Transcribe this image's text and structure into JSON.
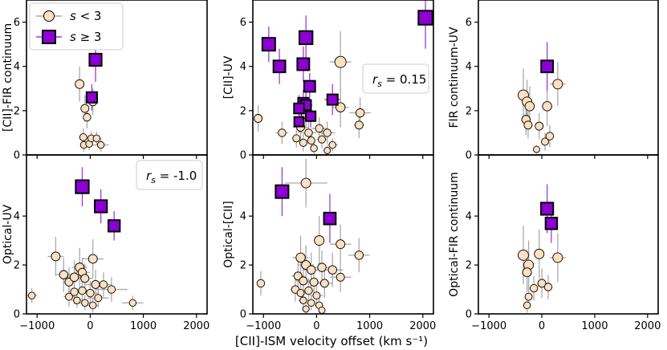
{
  "chart_data": {
    "type": "scatter",
    "shared_xlabel": "[CII]-ISM velocity offset (km s⁻¹)",
    "xlim": [
      -1200,
      2200
    ],
    "xticks": [
      -1000,
      0,
      1000,
      2000
    ],
    "xtick_labels": [
      "−1000",
      "0",
      "1000",
      "2000"
    ],
    "legend": {
      "position": "top-left of top-left panel",
      "entries": [
        {
          "label": "s < 3",
          "marker": "circle",
          "color": "#fde0c0"
        },
        {
          "label": "s ≥ 3",
          "marker": "square",
          "color": "#8c00d4"
        }
      ]
    },
    "colors": {
      "low_fill": "#fde0c0",
      "high_fill": "#8c00d4",
      "low_err": "#aaaaaa",
      "high_err": "#9a3fd0",
      "edge": "#000000"
    },
    "panels": [
      {
        "id": "p00",
        "ylabel": "[CII]-FIR continuum",
        "ylim": [
          0,
          7
        ],
        "yticks": [
          0,
          2,
          4,
          6
        ],
        "annotation": "",
        "low": [
          {
            "x": -200,
            "y": 3.2,
            "xerr": 80,
            "yerr": 0.8
          },
          {
            "x": -100,
            "y": 2.1,
            "xerr": 80,
            "yerr": 0.6
          },
          {
            "x": -60,
            "y": 1.7,
            "xerr": 60,
            "yerr": 0.5
          },
          {
            "x": 50,
            "y": 2.4,
            "xerr": 100,
            "yerr": 0.6
          },
          {
            "x": -130,
            "y": 0.8,
            "xerr": 80,
            "yerr": 0.4
          },
          {
            "x": -120,
            "y": 0.45,
            "xerr": 60,
            "yerr": 0.3
          },
          {
            "x": -20,
            "y": 0.5,
            "xerr": 60,
            "yerr": 0.3
          },
          {
            "x": 20,
            "y": 0.75,
            "xerr": 60,
            "yerr": 0.3
          },
          {
            "x": 120,
            "y": 0.75,
            "xerr": 80,
            "yerr": 0.3
          },
          {
            "x": 200,
            "y": 0.45,
            "xerr": 150,
            "yerr": 0.3
          }
        ],
        "high": [
          {
            "x": 30,
            "y": 2.6,
            "xerr": 90,
            "yerr": 0.6
          },
          {
            "x": 100,
            "y": 4.3,
            "xerr": 60,
            "yerr": 1.0
          }
        ]
      },
      {
        "id": "p01",
        "ylabel": "[CII]-UV",
        "ylim": [
          0,
          7
        ],
        "yticks": [
          0,
          2,
          4,
          6
        ],
        "annotation": "r_s = 0.15",
        "low": [
          {
            "x": 450,
            "y": 4.2,
            "xerr": 200,
            "yerr": 1.4
          },
          {
            "x": -1100,
            "y": 1.65,
            "xerr": 80,
            "yerr": 0.6
          },
          {
            "x": -200,
            "y": 1.85,
            "xerr": 120,
            "yerr": 0.9
          },
          {
            "x": 450,
            "y": 2.15,
            "xerr": 150,
            "yerr": 0.9
          },
          {
            "x": 820,
            "y": 1.9,
            "xerr": 200,
            "yerr": 0.7
          },
          {
            "x": 800,
            "y": 1.35,
            "xerr": 100,
            "yerr": 0.6
          },
          {
            "x": -650,
            "y": 1.0,
            "xerr": 120,
            "yerr": 0.5
          },
          {
            "x": -300,
            "y": 1.25,
            "xerr": 150,
            "yerr": 0.6
          },
          {
            "x": -150,
            "y": 1.0,
            "xerr": 150,
            "yerr": 0.5
          },
          {
            "x": 200,
            "y": 1.0,
            "xerr": 150,
            "yerr": 0.5
          },
          {
            "x": 50,
            "y": 1.2,
            "xerr": 150,
            "yerr": 0.5
          },
          {
            "x": -380,
            "y": 0.75,
            "xerr": 80,
            "yerr": 0.4
          },
          {
            "x": -250,
            "y": 0.55,
            "xerr": 80,
            "yerr": 0.4
          },
          {
            "x": -100,
            "y": 0.65,
            "xerr": 80,
            "yerr": 0.4
          },
          {
            "x": 100,
            "y": 0.7,
            "xerr": 100,
            "yerr": 0.4
          },
          {
            "x": 300,
            "y": 0.45,
            "xerr": 100,
            "yerr": 0.3
          },
          {
            "x": -50,
            "y": 0.3,
            "xerr": 60,
            "yerr": 0.3
          },
          {
            "x": 200,
            "y": 0.2,
            "xerr": 60,
            "yerr": 0.2
          }
        ],
        "high": [
          {
            "x": -900,
            "y": 5.0,
            "xerr": 100,
            "yerr": 0.8
          },
          {
            "x": -200,
            "y": 5.3,
            "xerr": 100,
            "yerr": 1.0
          },
          {
            "x": -700,
            "y": 4.0,
            "xerr": 80,
            "yerr": 0.8
          },
          {
            "x": -250,
            "y": 4.1,
            "xerr": 80,
            "yerr": 0.8
          },
          {
            "x": -130,
            "y": 3.1,
            "xerr": 80,
            "yerr": 0.6
          },
          {
            "x": 300,
            "y": 2.5,
            "xerr": 150,
            "yerr": 0.7
          },
          {
            "x": -250,
            "y": 2.35,
            "xerr": 100,
            "yerr": 0.6
          },
          {
            "x": -200,
            "y": 2.25,
            "xerr": 120,
            "yerr": 0.6
          },
          {
            "x": -330,
            "y": 2.1,
            "xerr": 100,
            "yerr": 0.6
          },
          {
            "x": -110,
            "y": 1.75,
            "xerr": 80,
            "yerr": 0.5
          },
          {
            "x": -330,
            "y": 1.5,
            "xerr": 80,
            "yerr": 0.5
          },
          {
            "x": 2050,
            "y": 6.2,
            "xerr": 150,
            "yerr": 1.4
          }
        ]
      },
      {
        "id": "p02",
        "ylabel": "FIR continuum-UV",
        "ylim": [
          0,
          7
        ],
        "yticks": [
          0,
          2,
          4,
          6
        ],
        "annotation": "",
        "low": [
          {
            "x": -350,
            "y": 2.7,
            "xerr": 80,
            "yerr": 1.2
          },
          {
            "x": -280,
            "y": 2.4,
            "xerr": 80,
            "yerr": 1.0
          },
          {
            "x": -230,
            "y": 2.2,
            "xerr": 80,
            "yerr": 0.9
          },
          {
            "x": -300,
            "y": 1.6,
            "xerr": 80,
            "yerr": 0.7
          },
          {
            "x": -260,
            "y": 1.35,
            "xerr": 80,
            "yerr": 0.6
          },
          {
            "x": 100,
            "y": 2.2,
            "xerr": 100,
            "yerr": 0.9
          },
          {
            "x": 300,
            "y": 3.2,
            "xerr": 150,
            "yerr": 1.0
          },
          {
            "x": 150,
            "y": 0.85,
            "xerr": 80,
            "yerr": 0.5
          },
          {
            "x": -50,
            "y": 1.3,
            "xerr": 80,
            "yerr": 0.6
          },
          {
            "x": 60,
            "y": 0.6,
            "xerr": 60,
            "yerr": 0.4
          },
          {
            "x": -100,
            "y": 0.25,
            "xerr": 40,
            "yerr": 0.2
          }
        ],
        "high": [
          {
            "x": 100,
            "y": 4.0,
            "xerr": 60,
            "yerr": 1.1
          }
        ]
      },
      {
        "id": "p10",
        "ylabel": "Optical-UV",
        "ylim": [
          0,
          6.5
        ],
        "yticks": [
          0,
          2,
          4
        ],
        "annotation": "r_s = -1.0",
        "low": [
          {
            "x": -1100,
            "y": 0.75,
            "xerr": 100,
            "yerr": 0.3
          },
          {
            "x": -650,
            "y": 2.35,
            "xerr": 150,
            "yerr": 0.8
          },
          {
            "x": -500,
            "y": 1.6,
            "xerr": 150,
            "yerr": 0.7
          },
          {
            "x": -400,
            "y": 1.3,
            "xerr": 120,
            "yerr": 0.6
          },
          {
            "x": -300,
            "y": 1.5,
            "xerr": 150,
            "yerr": 0.7
          },
          {
            "x": -200,
            "y": 1.9,
            "xerr": 150,
            "yerr": 0.8
          },
          {
            "x": -150,
            "y": 1.7,
            "xerr": 150,
            "yerr": 0.6
          },
          {
            "x": -100,
            "y": 1.45,
            "xerr": 150,
            "yerr": 0.6
          },
          {
            "x": 50,
            "y": 2.25,
            "xerr": 200,
            "yerr": 0.8
          },
          {
            "x": 100,
            "y": 1.2,
            "xerr": 200,
            "yerr": 0.6
          },
          {
            "x": 250,
            "y": 1.2,
            "xerr": 150,
            "yerr": 0.5
          },
          {
            "x": -300,
            "y": 0.9,
            "xerr": 120,
            "yerr": 0.5
          },
          {
            "x": -150,
            "y": 0.95,
            "xerr": 150,
            "yerr": 0.5
          },
          {
            "x": 0,
            "y": 0.85,
            "xerr": 150,
            "yerr": 0.5
          },
          {
            "x": 150,
            "y": 0.65,
            "xerr": 200,
            "yerr": 0.4
          },
          {
            "x": 400,
            "y": 1.0,
            "xerr": 300,
            "yerr": 0.5
          },
          {
            "x": -400,
            "y": 0.7,
            "xerr": 100,
            "yerr": 0.4
          },
          {
            "x": -250,
            "y": 0.55,
            "xerr": 100,
            "yerr": 0.3
          },
          {
            "x": -100,
            "y": 0.45,
            "xerr": 100,
            "yerr": 0.3
          },
          {
            "x": 50,
            "y": 0.35,
            "xerr": 100,
            "yerr": 0.3
          },
          {
            "x": 800,
            "y": 0.45,
            "xerr": 200,
            "yerr": 0.3
          }
        ],
        "high": [
          {
            "x": -150,
            "y": 5.2,
            "xerr": 120,
            "yerr": 0.8
          },
          {
            "x": 200,
            "y": 4.4,
            "xerr": 120,
            "yerr": 0.7
          },
          {
            "x": 450,
            "y": 3.6,
            "xerr": 100,
            "yerr": 0.6
          }
        ]
      },
      {
        "id": "p11",
        "ylabel": "Optical-[CII]",
        "ylim": [
          0,
          6.5
        ],
        "yticks": [
          0,
          2,
          4
        ],
        "annotation": "",
        "low": [
          {
            "x": -1050,
            "y": 1.25,
            "xerr": 80,
            "yerr": 0.5
          },
          {
            "x": -200,
            "y": 5.35,
            "xerr": 400,
            "yerr": 1.0
          },
          {
            "x": 50,
            "y": 3.0,
            "xerr": 100,
            "yerr": 1.0
          },
          {
            "x": 450,
            "y": 2.85,
            "xerr": 200,
            "yerr": 0.8
          },
          {
            "x": 800,
            "y": 2.4,
            "xerr": 200,
            "yerr": 0.7
          },
          {
            "x": -300,
            "y": 2.3,
            "xerr": 150,
            "yerr": 0.9
          },
          {
            "x": -200,
            "y": 2.0,
            "xerr": 150,
            "yerr": 0.8
          },
          {
            "x": -100,
            "y": 1.8,
            "xerr": 150,
            "yerr": 0.7
          },
          {
            "x": 100,
            "y": 1.9,
            "xerr": 200,
            "yerr": 0.7
          },
          {
            "x": 300,
            "y": 1.8,
            "xerr": 200,
            "yerr": 0.7
          },
          {
            "x": 450,
            "y": 1.5,
            "xerr": 200,
            "yerr": 0.6
          },
          {
            "x": -350,
            "y": 1.55,
            "xerr": 120,
            "yerr": 0.6
          },
          {
            "x": -250,
            "y": 1.35,
            "xerr": 150,
            "yerr": 0.6
          },
          {
            "x": -50,
            "y": 1.3,
            "xerr": 150,
            "yerr": 0.6
          },
          {
            "x": 150,
            "y": 1.25,
            "xerr": 150,
            "yerr": 0.6
          },
          {
            "x": -400,
            "y": 1.0,
            "xerr": 100,
            "yerr": 0.5
          },
          {
            "x": -300,
            "y": 0.85,
            "xerr": 100,
            "yerr": 0.4
          },
          {
            "x": -150,
            "y": 0.95,
            "xerr": 100,
            "yerr": 0.5
          },
          {
            "x": 0,
            "y": 0.75,
            "xerr": 120,
            "yerr": 0.4
          },
          {
            "x": -250,
            "y": 0.55,
            "xerr": 100,
            "yerr": 0.3
          },
          {
            "x": -100,
            "y": 0.45,
            "xerr": 100,
            "yerr": 0.3
          },
          {
            "x": 50,
            "y": 0.35,
            "xerr": 80,
            "yerr": 0.3
          },
          {
            "x": -200,
            "y": 0.2,
            "xerr": 80,
            "yerr": 0.2
          },
          {
            "x": 100,
            "y": 0.15,
            "xerr": 60,
            "yerr": 0.2
          }
        ],
        "high": [
          {
            "x": -650,
            "y": 5.0,
            "xerr": 100,
            "yerr": 1.0
          },
          {
            "x": 250,
            "y": 3.9,
            "xerr": 130,
            "yerr": 1.0
          }
        ]
      },
      {
        "id": "p12",
        "ylabel": "Optical-FIR continuum",
        "ylim": [
          0,
          6.5
        ],
        "yticks": [
          0,
          2,
          4
        ],
        "annotation": "",
        "low": [
          {
            "x": -350,
            "y": 2.4,
            "xerr": 80,
            "yerr": 1.2
          },
          {
            "x": -250,
            "y": 2.0,
            "xerr": 80,
            "yerr": 1.0
          },
          {
            "x": -50,
            "y": 2.45,
            "xerr": 100,
            "yerr": 1.0
          },
          {
            "x": 300,
            "y": 2.3,
            "xerr": 150,
            "yerr": 1.0
          },
          {
            "x": -280,
            "y": 1.7,
            "xerr": 80,
            "yerr": 0.8
          },
          {
            "x": 0,
            "y": 1.25,
            "xerr": 80,
            "yerr": 0.6
          },
          {
            "x": 120,
            "y": 1.1,
            "xerr": 80,
            "yerr": 0.5
          },
          {
            "x": -150,
            "y": 1.05,
            "xerr": 80,
            "yerr": 0.5
          },
          {
            "x": -250,
            "y": 0.7,
            "xerr": 60,
            "yerr": 0.4
          },
          {
            "x": -280,
            "y": 0.35,
            "xerr": 60,
            "yerr": 0.3
          }
        ],
        "high": [
          {
            "x": 100,
            "y": 4.3,
            "xerr": 80,
            "yerr": 1.0
          },
          {
            "x": 180,
            "y": 3.7,
            "xerr": 100,
            "yerr": 0.8
          }
        ]
      }
    ]
  }
}
